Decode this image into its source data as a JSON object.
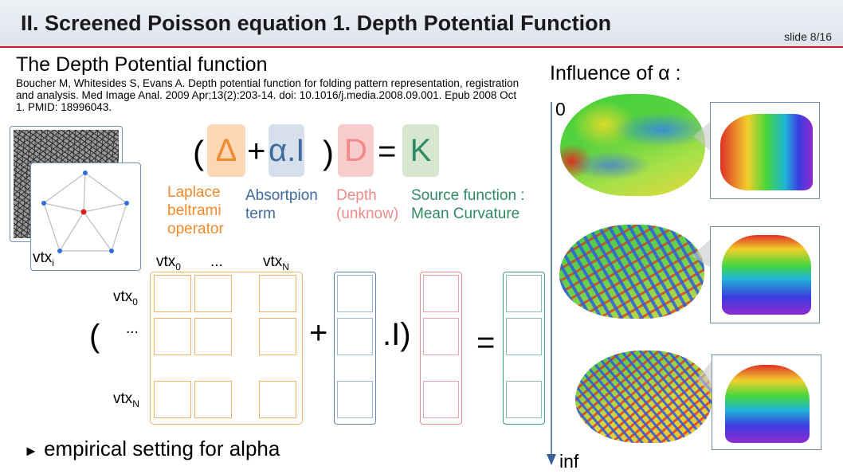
{
  "header": {
    "title": "II. Screened Poisson equation 1. Depth Potential Function",
    "slide_number": "slide 8/16"
  },
  "section": {
    "title": "The Depth Potential function",
    "citation": "Boucher M, Whitesides S, Evans A. Depth potential function for folding pattern representation, registration and analysis. Med Image Anal. 2009 Apr;13(2):203-14. doi: 10.1016/j.media.2008.09.001. Epub 2008 Oct 1. PMID: 18996043."
  },
  "mesh": {
    "vtx_label": "vtx",
    "vtx_sub": "i"
  },
  "equation": {
    "open_paren": "(",
    "laplace_symbol": "Δ",
    "plus": "+",
    "absorption_symbol": "α.I",
    "close_paren": ")",
    "depth_symbol": "D",
    "equals": "=",
    "source_symbol": "K",
    "colors": {
      "laplace": "#f08a2c",
      "absorption": "#3e6aa0",
      "depth": "#f08a8a",
      "source": "#2f8a64"
    }
  },
  "terms": {
    "laplace": [
      "Laplace",
      "beltrami",
      "operator"
    ],
    "absorption": [
      "Absortpion",
      "term"
    ],
    "depth": [
      "Depth",
      "(unknow)"
    ],
    "source": [
      "Source function :",
      "Mean Curvature"
    ]
  },
  "matrix": {
    "vtx": "vtx",
    "sub_0": "0",
    "sub_N": "N",
    "ellipsis": "...",
    "open_paren": "(",
    "plus": "+",
    "dot_I": ".I)",
    "equals": "="
  },
  "bullet": {
    "marker": "►",
    "text": "empirical setting for alpha"
  },
  "influence": {
    "title": "Influence of α :",
    "top_label": "0",
    "bottom_label": "inf"
  }
}
